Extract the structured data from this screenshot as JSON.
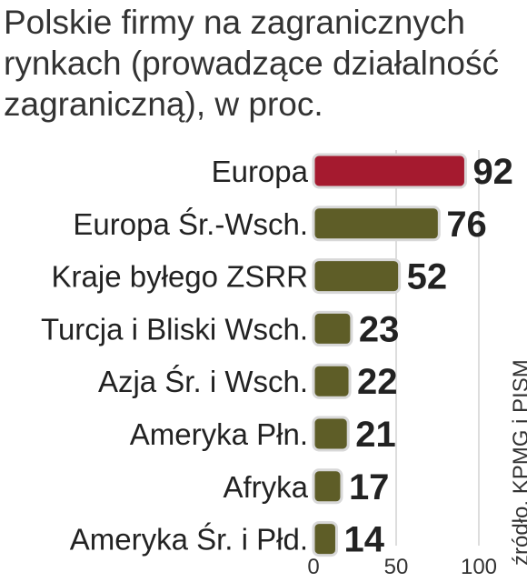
{
  "title_lines": [
    "Polskie firmy na zagranicznych",
    "rynkach (prowadzące działalność",
    "zagraniczną), w proc."
  ],
  "source": "źródło, KPMG i PISM",
  "chart_data": {
    "type": "bar",
    "orientation": "horizontal",
    "categories": [
      "Europa",
      "Europa Śr.-Wsch.",
      "Kraje byłego ZSRR",
      "Turcja i Bliski Wsch.",
      "Azja Śr. i Wsch.",
      "Ameryka Płn.",
      "Afryka",
      "Ameryka Śr. i Płd."
    ],
    "values": [
      92,
      76,
      52,
      23,
      22,
      21,
      17,
      14
    ],
    "xlim": [
      0,
      100
    ],
    "xticks": [
      0,
      50,
      100
    ],
    "colors": {
      "highlight": "#a51a2f",
      "default": "#5e5d27",
      "border": "#d8d8d8",
      "grid": "#bbbbbb"
    }
  }
}
